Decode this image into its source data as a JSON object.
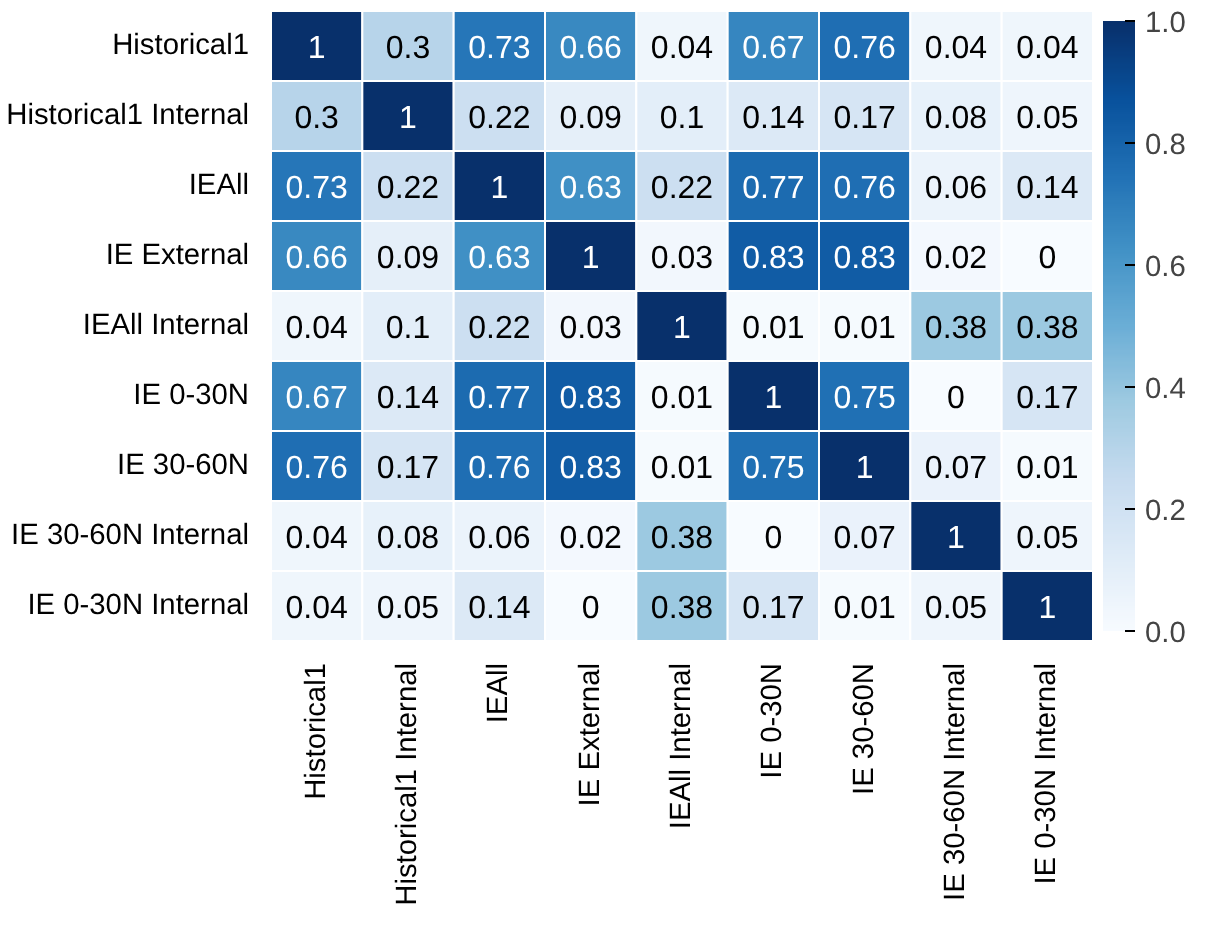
{
  "chart_data": {
    "type": "heatmap",
    "categories": [
      "Historical1",
      "Historical1 Internal",
      "IEAll",
      "IE External",
      "IEAll Internal",
      "IE 0-30N",
      "IE 30-60N",
      "IE 30-60N Internal",
      "IE 0-30N Internal"
    ],
    "y_categories": [
      "Historical1",
      "Historical1 Internal",
      "IEAll",
      "IE External",
      "IEAll Internal",
      "IE 0-30N",
      "IE 30-60N",
      "IE 30-60N Internal",
      "IE 0-30N Internal"
    ],
    "cells": [
      [
        1,
        0.3,
        0.73,
        0.66,
        0.04,
        0.67,
        0.76,
        0.04,
        0.04
      ],
      [
        0.3,
        1,
        0.22,
        0.09,
        0.1,
        0.14,
        0.17,
        0.08,
        0.05
      ],
      [
        0.73,
        0.22,
        1,
        0.63,
        0.22,
        0.77,
        0.76,
        0.06,
        0.14
      ],
      [
        0.66,
        0.09,
        0.63,
        1,
        0.03,
        0.83,
        0.83,
        0.02,
        0
      ],
      [
        0.04,
        0.1,
        0.22,
        0.03,
        1,
        0.01,
        0.01,
        0.38,
        0.38
      ],
      [
        0.67,
        0.14,
        0.77,
        0.83,
        0.01,
        1,
        0.75,
        0,
        0.17
      ],
      [
        0.76,
        0.17,
        0.76,
        0.83,
        0.01,
        0.75,
        1,
        0.07,
        0.01
      ],
      [
        0.04,
        0.08,
        0.06,
        0.02,
        0.38,
        0,
        0.07,
        1,
        0.05
      ],
      [
        0.04,
        0.05,
        0.14,
        0,
        0.38,
        0.17,
        0.01,
        0.05,
        1
      ]
    ],
    "clim": [
      0,
      1
    ],
    "cticks": [
      {
        "value": 0,
        "label": "0.0"
      },
      {
        "value": 0.2,
        "label": "0.2"
      },
      {
        "value": 0.4,
        "label": "0.4"
      },
      {
        "value": 0.6,
        "label": "0.6"
      },
      {
        "value": 0.8,
        "label": "0.8"
      },
      {
        "value": 1,
        "label": "1.0"
      }
    ],
    "data_labels": true
  }
}
